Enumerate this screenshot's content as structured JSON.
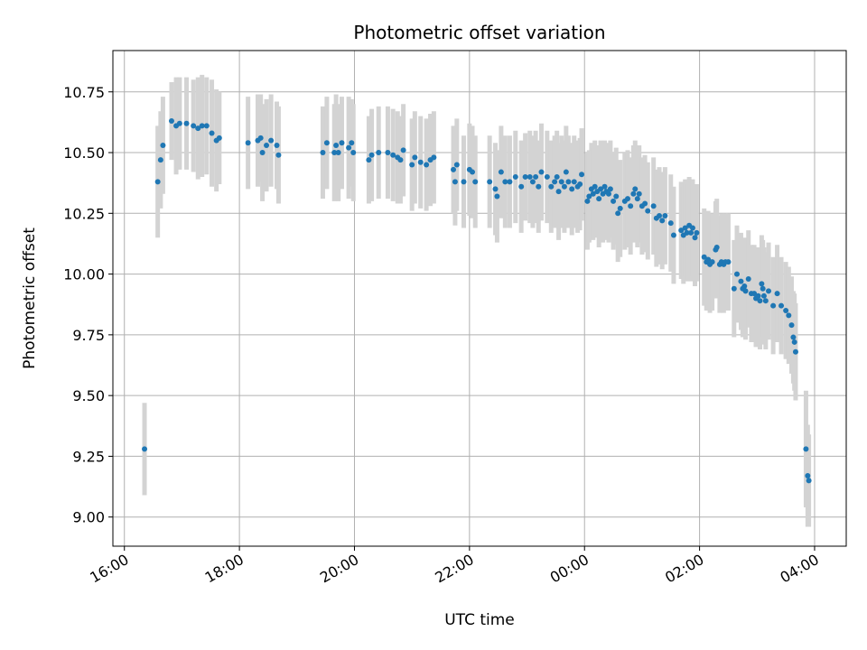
{
  "chart_data": {
    "type": "scatter",
    "title": "Photometric offset variation",
    "xlabel": "UTC time",
    "ylabel": "Photometric offset",
    "x_unit": "hours (UTC, continuous across midnight)",
    "xlim": [
      15.8,
      28.55
    ],
    "ylim": [
      8.88,
      10.92
    ],
    "x_ticks": [
      {
        "value": 16,
        "label": "16:00"
      },
      {
        "value": 18,
        "label": "18:00"
      },
      {
        "value": 20,
        "label": "20:00"
      },
      {
        "value": 22,
        "label": "22:00"
      },
      {
        "value": 24,
        "label": "00:00"
      },
      {
        "value": 26,
        "label": "02:00"
      },
      {
        "value": 28,
        "label": "04:00"
      }
    ],
    "y_ticks": [
      {
        "value": 9.0,
        "label": "9.00"
      },
      {
        "value": 9.25,
        "label": "9.25"
      },
      {
        "value": 9.5,
        "label": "9.50"
      },
      {
        "value": 9.75,
        "label": "9.75"
      },
      {
        "value": 10.0,
        "label": "10.00"
      },
      {
        "value": 10.25,
        "label": "10.25"
      },
      {
        "value": 10.5,
        "label": "10.50"
      },
      {
        "value": 10.75,
        "label": "10.75"
      }
    ],
    "grid": true,
    "point_color": "#1f77b4",
    "errorbar_color": "#d3d3d3",
    "points": [
      [
        16.35,
        9.28,
        0.19
      ],
      [
        16.58,
        10.38,
        0.23
      ],
      [
        16.63,
        10.47,
        0.2
      ],
      [
        16.67,
        10.53,
        0.2
      ],
      [
        16.82,
        10.63,
        0.16
      ],
      [
        16.9,
        10.61,
        0.2
      ],
      [
        16.96,
        10.62,
        0.19
      ],
      [
        17.08,
        10.62,
        0.19
      ],
      [
        17.2,
        10.61,
        0.19
      ],
      [
        17.28,
        10.6,
        0.21
      ],
      [
        17.35,
        10.61,
        0.21
      ],
      [
        17.43,
        10.61,
        0.2
      ],
      [
        17.52,
        10.58,
        0.22
      ],
      [
        17.6,
        10.55,
        0.21
      ],
      [
        17.65,
        10.56,
        0.19
      ],
      [
        18.15,
        10.54,
        0.19
      ],
      [
        18.32,
        10.55,
        0.19
      ],
      [
        18.37,
        10.56,
        0.18
      ],
      [
        18.4,
        10.5,
        0.2
      ],
      [
        18.47,
        10.53,
        0.19
      ],
      [
        18.55,
        10.55,
        0.19
      ],
      [
        18.65,
        10.53,
        0.18
      ],
      [
        18.68,
        10.49,
        0.2
      ],
      [
        19.45,
        10.5,
        0.19
      ],
      [
        19.52,
        10.54,
        0.19
      ],
      [
        19.65,
        10.5,
        0.2
      ],
      [
        19.68,
        10.53,
        0.21
      ],
      [
        19.72,
        10.5,
        0.2
      ],
      [
        19.78,
        10.54,
        0.19
      ],
      [
        19.9,
        10.52,
        0.21
      ],
      [
        19.95,
        10.54,
        0.18
      ],
      [
        19.98,
        10.5,
        0.2
      ],
      [
        20.25,
        10.47,
        0.18
      ],
      [
        20.3,
        10.49,
        0.19
      ],
      [
        20.42,
        10.5,
        0.19
      ],
      [
        20.58,
        10.5,
        0.19
      ],
      [
        20.67,
        10.49,
        0.19
      ],
      [
        20.75,
        10.48,
        0.19
      ],
      [
        20.8,
        10.47,
        0.18
      ],
      [
        20.85,
        10.51,
        0.19
      ],
      [
        21.0,
        10.45,
        0.19
      ],
      [
        21.05,
        10.48,
        0.19
      ],
      [
        21.15,
        10.46,
        0.19
      ],
      [
        21.25,
        10.45,
        0.19
      ],
      [
        21.32,
        10.47,
        0.19
      ],
      [
        21.38,
        10.48,
        0.19
      ],
      [
        21.72,
        10.43,
        0.18
      ],
      [
        21.75,
        10.38,
        0.18
      ],
      [
        21.78,
        10.45,
        0.19
      ],
      [
        21.9,
        10.38,
        0.19
      ],
      [
        22.0,
        10.43,
        0.19
      ],
      [
        22.05,
        10.42,
        0.19
      ],
      [
        22.1,
        10.38,
        0.19
      ],
      [
        22.35,
        10.38,
        0.19
      ],
      [
        22.45,
        10.35,
        0.19
      ],
      [
        22.48,
        10.32,
        0.19
      ],
      [
        22.55,
        10.42,
        0.19
      ],
      [
        22.62,
        10.38,
        0.19
      ],
      [
        22.7,
        10.38,
        0.19
      ],
      [
        22.8,
        10.4,
        0.19
      ],
      [
        22.9,
        10.36,
        0.19
      ],
      [
        22.97,
        10.4,
        0.18
      ],
      [
        23.05,
        10.4,
        0.19
      ],
      [
        23.1,
        10.38,
        0.19
      ],
      [
        23.15,
        10.4,
        0.19
      ],
      [
        23.2,
        10.36,
        0.19
      ],
      [
        23.25,
        10.42,
        0.2
      ],
      [
        23.35,
        10.4,
        0.19
      ],
      [
        23.42,
        10.36,
        0.19
      ],
      [
        23.48,
        10.38,
        0.19
      ],
      [
        23.52,
        10.4,
        0.19
      ],
      [
        23.55,
        10.34,
        0.2
      ],
      [
        23.6,
        10.38,
        0.19
      ],
      [
        23.65,
        10.36,
        0.19
      ],
      [
        23.68,
        10.42,
        0.19
      ],
      [
        23.72,
        10.38,
        0.19
      ],
      [
        23.78,
        10.35,
        0.19
      ],
      [
        23.82,
        10.38,
        0.19
      ],
      [
        23.88,
        10.36,
        0.19
      ],
      [
        23.92,
        10.37,
        0.19
      ],
      [
        23.95,
        10.41,
        0.19
      ],
      [
        24.05,
        10.3,
        0.2
      ],
      [
        24.08,
        10.32,
        0.19
      ],
      [
        24.12,
        10.35,
        0.19
      ],
      [
        24.15,
        10.33,
        0.19
      ],
      [
        24.18,
        10.36,
        0.19
      ],
      [
        24.22,
        10.34,
        0.19
      ],
      [
        24.25,
        10.31,
        0.2
      ],
      [
        24.28,
        10.35,
        0.2
      ],
      [
        24.32,
        10.33,
        0.2
      ],
      [
        24.35,
        10.36,
        0.19
      ],
      [
        24.38,
        10.34,
        0.2
      ],
      [
        24.42,
        10.33,
        0.2
      ],
      [
        24.45,
        10.35,
        0.2
      ],
      [
        24.5,
        10.3,
        0.2
      ],
      [
        24.55,
        10.32,
        0.2
      ],
      [
        24.58,
        10.25,
        0.2
      ],
      [
        24.62,
        10.27,
        0.2
      ],
      [
        24.7,
        10.3,
        0.2
      ],
      [
        24.75,
        10.31,
        0.2
      ],
      [
        24.8,
        10.28,
        0.2
      ],
      [
        24.85,
        10.33,
        0.2
      ],
      [
        24.88,
        10.35,
        0.2
      ],
      [
        24.92,
        10.31,
        0.2
      ],
      [
        24.95,
        10.33,
        0.2
      ],
      [
        25.0,
        10.28,
        0.2
      ],
      [
        25.05,
        10.29,
        0.2
      ],
      [
        25.1,
        10.26,
        0.2
      ],
      [
        25.2,
        10.28,
        0.2
      ],
      [
        25.25,
        10.23,
        0.2
      ],
      [
        25.3,
        10.24,
        0.2
      ],
      [
        25.35,
        10.22,
        0.2
      ],
      [
        25.4,
        10.24,
        0.2
      ],
      [
        25.5,
        10.21,
        0.2
      ],
      [
        25.55,
        10.16,
        0.2
      ],
      [
        25.68,
        10.18,
        0.2
      ],
      [
        25.72,
        10.16,
        0.2
      ],
      [
        25.75,
        10.19,
        0.2
      ],
      [
        25.78,
        10.17,
        0.2
      ],
      [
        25.82,
        10.2,
        0.2
      ],
      [
        25.85,
        10.17,
        0.2
      ],
      [
        25.88,
        10.19,
        0.2
      ],
      [
        25.92,
        10.15,
        0.2
      ],
      [
        25.95,
        10.17,
        0.2
      ],
      [
        26.08,
        10.07,
        0.2
      ],
      [
        26.12,
        10.05,
        0.2
      ],
      [
        26.15,
        10.06,
        0.2
      ],
      [
        26.18,
        10.04,
        0.2
      ],
      [
        26.22,
        10.05,
        0.2
      ],
      [
        26.28,
        10.1,
        0.2
      ],
      [
        26.3,
        10.11,
        0.2
      ],
      [
        26.35,
        10.04,
        0.2
      ],
      [
        26.38,
        10.05,
        0.2
      ],
      [
        26.42,
        10.04,
        0.2
      ],
      [
        26.45,
        10.05,
        0.2
      ],
      [
        26.5,
        10.05,
        0.2
      ],
      [
        26.6,
        9.94,
        0.2
      ],
      [
        26.65,
        10.0,
        0.2
      ],
      [
        26.72,
        9.97,
        0.2
      ],
      [
        26.75,
        9.94,
        0.2
      ],
      [
        26.78,
        9.95,
        0.2
      ],
      [
        26.8,
        9.93,
        0.2
      ],
      [
        26.85,
        9.98,
        0.2
      ],
      [
        26.9,
        9.92,
        0.2
      ],
      [
        26.95,
        9.92,
        0.2
      ],
      [
        26.98,
        9.9,
        0.2
      ],
      [
        27.02,
        9.91,
        0.2
      ],
      [
        27.05,
        9.89,
        0.2
      ],
      [
        27.08,
        9.96,
        0.2
      ],
      [
        27.1,
        9.94,
        0.2
      ],
      [
        27.12,
        9.91,
        0.2
      ],
      [
        27.15,
        9.89,
        0.2
      ],
      [
        27.2,
        9.93,
        0.2
      ],
      [
        27.28,
        9.87,
        0.2
      ],
      [
        27.35,
        9.92,
        0.2
      ],
      [
        27.42,
        9.87,
        0.2
      ],
      [
        27.5,
        9.85,
        0.2
      ],
      [
        27.55,
        9.83,
        0.2
      ],
      [
        27.6,
        9.79,
        0.2
      ],
      [
        27.63,
        9.74,
        0.19
      ],
      [
        27.65,
        9.72,
        0.2
      ],
      [
        27.67,
        9.68,
        0.2
      ],
      [
        27.85,
        9.28,
        0.24
      ],
      [
        27.88,
        9.17,
        0.21
      ],
      [
        27.9,
        9.15,
        0.19
      ]
    ]
  }
}
